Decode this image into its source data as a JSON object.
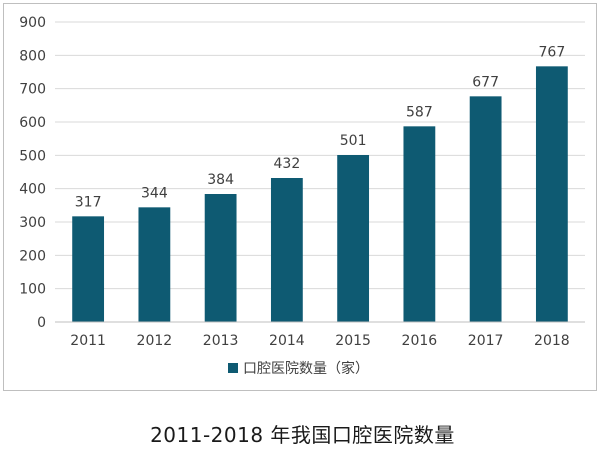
{
  "caption": "2011-2018 年我国口腔医院数量",
  "chart_data": {
    "type": "bar",
    "categories": [
      "2011",
      "2012",
      "2013",
      "2014",
      "2015",
      "2016",
      "2017",
      "2018"
    ],
    "series": [
      {
        "name": "口腔医院数量（家）",
        "values": [
          317,
          344,
          384,
          432,
          501,
          587,
          677,
          767
        ],
        "color": "#0e5a72"
      }
    ],
    "ylim": [
      0,
      900
    ],
    "yticks": [
      0,
      100,
      200,
      300,
      400,
      500,
      600,
      700,
      800,
      900
    ],
    "grid": true,
    "data_labels": true,
    "legend_position": "bottom",
    "title": "",
    "xlabel": "",
    "ylabel": ""
  }
}
